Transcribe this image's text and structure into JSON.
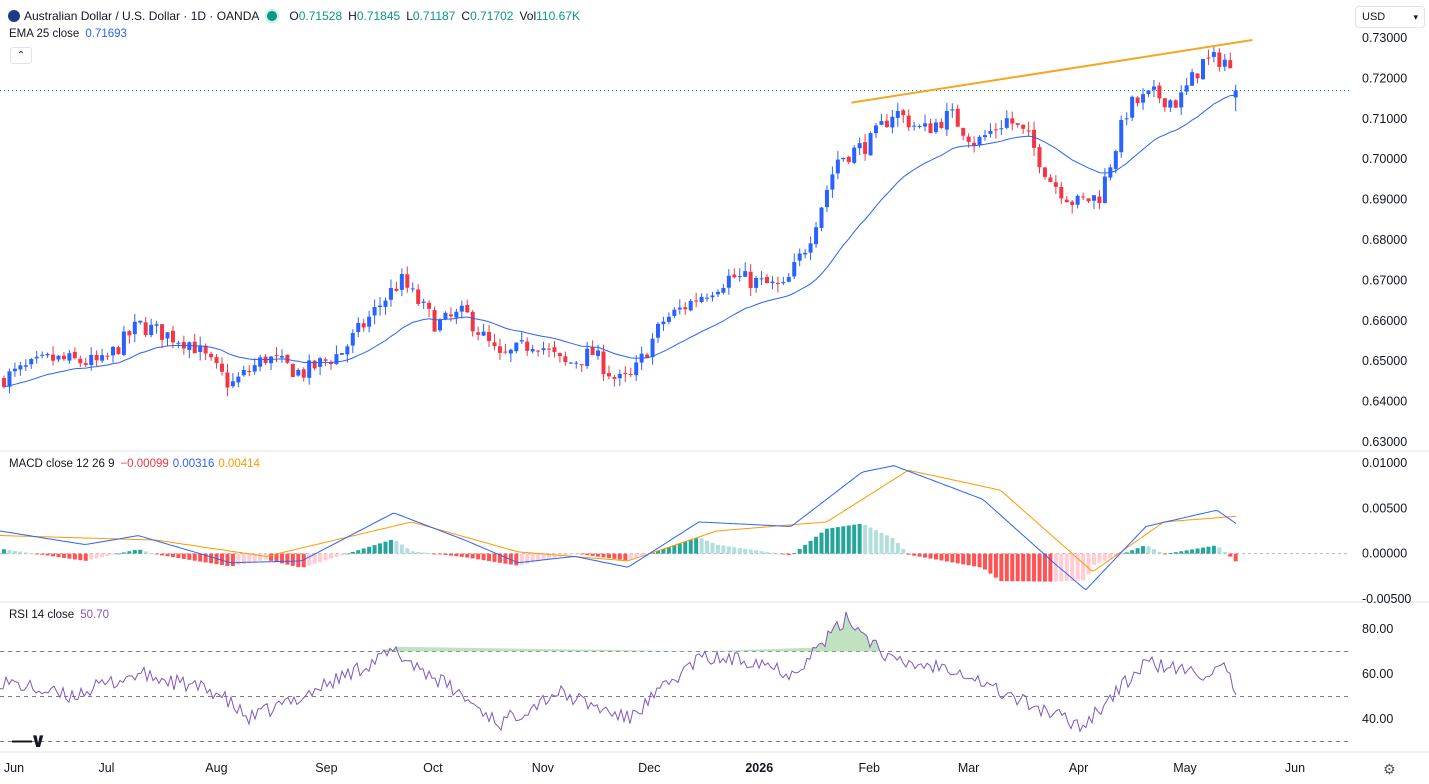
{
  "header": {
    "title": "Australian Dollar / U.S. Dollar · 1D · OANDA",
    "ohlc": [
      {
        "k": "O",
        "v": "0.71528"
      },
      {
        "k": "H",
        "v": "0.71845"
      },
      {
        "k": "L",
        "v": "0.71187"
      },
      {
        "k": "C",
        "v": "0.71702"
      },
      {
        "k": "Vol",
        "v": "110.67K"
      }
    ]
  },
  "currency": "USD",
  "colors": {
    "up": "#2962ff",
    "down": "#f23645",
    "ema": "#2962ff",
    "trendline": "#f5a623",
    "macd": "#2962ff",
    "signal": "#ff9800",
    "rsi": "#7e57c2"
  },
  "indicators": {
    "ema": {
      "label": "EMA 25 close",
      "value": "0.71693"
    },
    "macd": {
      "label": "MACD close 12 26 9",
      "hist": "−0.00099",
      "macd": "0.00316",
      "signal": "0.00414"
    },
    "rsi": {
      "label": "RSI 14 close",
      "value": "50.70"
    }
  },
  "chart_data": [
    {
      "type": "candlestick",
      "title": "Australian Dollar / U.S. Dollar · 1D · OANDA",
      "x_ticks": [
        "Jun",
        "Jul",
        "Aug",
        "Sep",
        "Oct",
        "Nov",
        "Dec",
        "2026",
        "Feb",
        "Mar",
        "Apr",
        "May",
        "Jun"
      ],
      "y_ticks": [
        "0.73000",
        "0.72000",
        "0.71000",
        "0.70000",
        "0.69000",
        "0.68000",
        "0.67000",
        "0.66000",
        "0.65000",
        "0.64000",
        "0.63000"
      ],
      "ylim": [
        0.63,
        0.73
      ],
      "close_path": [
        [
          "2025-06-01",
          0.6455
        ],
        [
          "2025-06-15",
          0.6505
        ],
        [
          "2025-06-30",
          0.6495
        ],
        [
          "2025-07-10",
          0.659
        ],
        [
          "2025-07-25",
          0.6545
        ],
        [
          "2025-08-05",
          0.644
        ],
        [
          "2025-08-15",
          0.651
        ],
        [
          "2025-08-25",
          0.647
        ],
        [
          "2025-09-05",
          0.652
        ],
        [
          "2025-09-17",
          0.665
        ],
        [
          "2025-09-22",
          0.67
        ],
        [
          "2025-10-02",
          0.659
        ],
        [
          "2025-10-10",
          0.662
        ],
        [
          "2025-10-20",
          0.6505
        ],
        [
          "2025-10-30",
          0.655
        ],
        [
          "2025-11-07",
          0.649
        ],
        [
          "2025-11-15",
          0.652
        ],
        [
          "2025-11-22",
          0.645
        ],
        [
          "2025-11-26",
          0.646
        ],
        [
          "2025-12-05",
          0.66
        ],
        [
          "2025-12-15",
          0.666
        ],
        [
          "2025-12-24",
          0.671
        ],
        [
          "2026-01-08",
          0.668
        ],
        [
          "2026-01-15",
          0.68
        ],
        [
          "2026-01-23",
          0.7
        ],
        [
          "2026-02-01",
          0.704
        ],
        [
          "2026-02-08",
          0.712
        ],
        [
          "2026-02-16",
          0.707
        ],
        [
          "2026-02-24",
          0.711
        ],
        [
          "2026-03-03",
          0.704
        ],
        [
          "2026-03-12",
          0.71
        ],
        [
          "2026-03-18",
          0.705
        ],
        [
          "2026-03-24",
          0.695
        ],
        [
          "2026-03-31",
          0.689
        ],
        [
          "2026-04-07",
          0.691
        ],
        [
          "2026-04-15",
          0.713
        ],
        [
          "2026-04-22",
          0.716
        ],
        [
          "2026-04-29",
          0.714
        ],
        [
          "2026-05-06",
          0.724
        ],
        [
          "2026-05-12",
          0.725
        ],
        [
          "2026-05-16",
          0.717
        ]
      ],
      "ema": {
        "name": "EMA 25 close",
        "value": 0.71693
      },
      "trendline": {
        "from": [
          "2026-01-27",
          0.714
        ],
        "to": [
          "2026-05-20",
          0.7295
        ]
      },
      "last_price_level": 0.717
    },
    {
      "type": "line",
      "title": "MACD close 12 26 9",
      "y_ticks": [
        "0.01000",
        "0.00500",
        "0.00000",
        "-0.00500"
      ],
      "ylim": [
        -0.005,
        0.01
      ],
      "series": [
        {
          "name": "MACD",
          "points": [
            [
              "2025-06-01",
              0.0025
            ],
            [
              "2025-06-25",
              0.001
            ],
            [
              "2025-07-10",
              0.002
            ],
            [
              "2025-08-05",
              -0.001
            ],
            [
              "2025-08-25",
              -0.0008
            ],
            [
              "2025-09-20",
              0.0045
            ],
            [
              "2025-10-10",
              0.0015
            ],
            [
              "2025-10-25",
              -0.001
            ],
            [
              "2025-11-10",
              -0.0003
            ],
            [
              "2025-11-25",
              -0.0015
            ],
            [
              "2025-12-15",
              0.0035
            ],
            [
              "2026-01-10",
              0.003
            ],
            [
              "2026-01-30",
              0.009
            ],
            [
              "2026-02-08",
              0.0097
            ],
            [
              "2026-03-05",
              0.006
            ],
            [
              "2026-03-25",
              -0.001
            ],
            [
              "2026-04-03",
              -0.004
            ],
            [
              "2026-04-20",
              0.003
            ],
            [
              "2026-05-10",
              0.0048
            ],
            [
              "2026-05-16",
              0.00316
            ]
          ]
        },
        {
          "name": "Signal",
          "points": [
            [
              "2025-06-01",
              0.002
            ],
            [
              "2025-07-15",
              0.0015
            ],
            [
              "2025-08-15",
              -0.0003
            ],
            [
              "2025-09-25",
              0.0035
            ],
            [
              "2025-10-25",
              0.0002
            ],
            [
              "2025-11-25",
              -0.0008
            ],
            [
              "2025-12-20",
              0.0025
            ],
            [
              "2026-01-20",
              0.0035
            ],
            [
              "2026-02-12",
              0.0092
            ],
            [
              "2026-03-10",
              0.007
            ],
            [
              "2026-04-05",
              -0.002
            ],
            [
              "2026-04-25",
              0.0035
            ],
            [
              "2026-05-16",
              0.00414
            ]
          ]
        }
      ],
      "histogram_last": -0.00099
    },
    {
      "type": "line",
      "title": "RSI 14 close",
      "y_ticks": [
        "80.00",
        "60.00",
        "40.00"
      ],
      "ylim": [
        30,
        90
      ],
      "levels": [
        70,
        50,
        30
      ],
      "series": [
        {
          "name": "RSI",
          "points": [
            [
              "2025-06-01",
              57
            ],
            [
              "2025-06-20",
              50
            ],
            [
              "2025-07-10",
              60
            ],
            [
              "2025-08-01",
              52
            ],
            [
              "2025-08-10",
              40
            ],
            [
              "2025-08-25",
              50
            ],
            [
              "2025-09-20",
              70
            ],
            [
              "2025-10-05",
              55
            ],
            [
              "2025-10-20",
              38
            ],
            [
              "2025-11-05",
              52
            ],
            [
              "2025-11-25",
              40
            ],
            [
              "2025-12-15",
              67
            ],
            [
              "2026-01-01",
              66
            ],
            [
              "2026-01-10",
              60
            ],
            [
              "2026-01-26",
              85
            ],
            [
              "2026-02-08",
              65
            ],
            [
              "2026-02-25",
              63
            ],
            [
              "2026-03-10",
              52
            ],
            [
              "2026-03-25",
              42
            ],
            [
              "2026-04-02",
              37
            ],
            [
              "2026-04-20",
              65
            ],
            [
              "2026-05-05",
              60
            ],
            [
              "2026-05-12",
              62
            ],
            [
              "2026-05-16",
              50.7
            ]
          ]
        }
      ]
    }
  ]
}
